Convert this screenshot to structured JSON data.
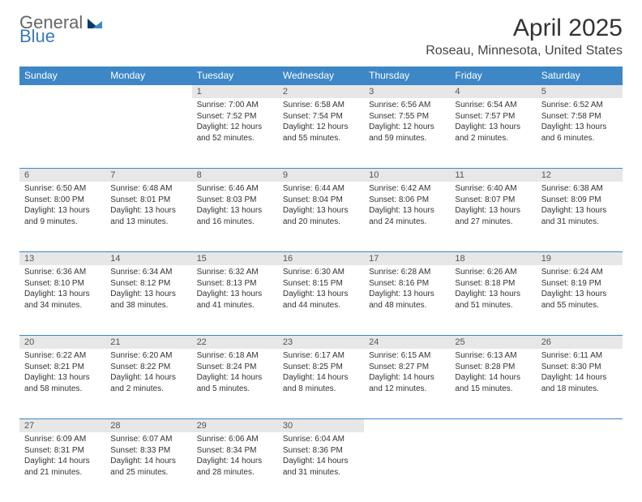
{
  "logo": {
    "text1": "General",
    "text2": "Blue"
  },
  "title": "April 2025",
  "location": "Roseau, Minnesota, United States",
  "header_bg": "#3d87c7",
  "daynum_bg": "#e7e7e7",
  "weekdays": [
    "Sunday",
    "Monday",
    "Tuesday",
    "Wednesday",
    "Thursday",
    "Friday",
    "Saturday"
  ],
  "weeks": [
    [
      null,
      null,
      {
        "n": "1",
        "sr": "Sunrise: 7:00 AM",
        "ss": "Sunset: 7:52 PM",
        "dl": "Daylight: 12 hours and 52 minutes."
      },
      {
        "n": "2",
        "sr": "Sunrise: 6:58 AM",
        "ss": "Sunset: 7:54 PM",
        "dl": "Daylight: 12 hours and 55 minutes."
      },
      {
        "n": "3",
        "sr": "Sunrise: 6:56 AM",
        "ss": "Sunset: 7:55 PM",
        "dl": "Daylight: 12 hours and 59 minutes."
      },
      {
        "n": "4",
        "sr": "Sunrise: 6:54 AM",
        "ss": "Sunset: 7:57 PM",
        "dl": "Daylight: 13 hours and 2 minutes."
      },
      {
        "n": "5",
        "sr": "Sunrise: 6:52 AM",
        "ss": "Sunset: 7:58 PM",
        "dl": "Daylight: 13 hours and 6 minutes."
      }
    ],
    [
      {
        "n": "6",
        "sr": "Sunrise: 6:50 AM",
        "ss": "Sunset: 8:00 PM",
        "dl": "Daylight: 13 hours and 9 minutes."
      },
      {
        "n": "7",
        "sr": "Sunrise: 6:48 AM",
        "ss": "Sunset: 8:01 PM",
        "dl": "Daylight: 13 hours and 13 minutes."
      },
      {
        "n": "8",
        "sr": "Sunrise: 6:46 AM",
        "ss": "Sunset: 8:03 PM",
        "dl": "Daylight: 13 hours and 16 minutes."
      },
      {
        "n": "9",
        "sr": "Sunrise: 6:44 AM",
        "ss": "Sunset: 8:04 PM",
        "dl": "Daylight: 13 hours and 20 minutes."
      },
      {
        "n": "10",
        "sr": "Sunrise: 6:42 AM",
        "ss": "Sunset: 8:06 PM",
        "dl": "Daylight: 13 hours and 24 minutes."
      },
      {
        "n": "11",
        "sr": "Sunrise: 6:40 AM",
        "ss": "Sunset: 8:07 PM",
        "dl": "Daylight: 13 hours and 27 minutes."
      },
      {
        "n": "12",
        "sr": "Sunrise: 6:38 AM",
        "ss": "Sunset: 8:09 PM",
        "dl": "Daylight: 13 hours and 31 minutes."
      }
    ],
    [
      {
        "n": "13",
        "sr": "Sunrise: 6:36 AM",
        "ss": "Sunset: 8:10 PM",
        "dl": "Daylight: 13 hours and 34 minutes."
      },
      {
        "n": "14",
        "sr": "Sunrise: 6:34 AM",
        "ss": "Sunset: 8:12 PM",
        "dl": "Daylight: 13 hours and 38 minutes."
      },
      {
        "n": "15",
        "sr": "Sunrise: 6:32 AM",
        "ss": "Sunset: 8:13 PM",
        "dl": "Daylight: 13 hours and 41 minutes."
      },
      {
        "n": "16",
        "sr": "Sunrise: 6:30 AM",
        "ss": "Sunset: 8:15 PM",
        "dl": "Daylight: 13 hours and 44 minutes."
      },
      {
        "n": "17",
        "sr": "Sunrise: 6:28 AM",
        "ss": "Sunset: 8:16 PM",
        "dl": "Daylight: 13 hours and 48 minutes."
      },
      {
        "n": "18",
        "sr": "Sunrise: 6:26 AM",
        "ss": "Sunset: 8:18 PM",
        "dl": "Daylight: 13 hours and 51 minutes."
      },
      {
        "n": "19",
        "sr": "Sunrise: 6:24 AM",
        "ss": "Sunset: 8:19 PM",
        "dl": "Daylight: 13 hours and 55 minutes."
      }
    ],
    [
      {
        "n": "20",
        "sr": "Sunrise: 6:22 AM",
        "ss": "Sunset: 8:21 PM",
        "dl": "Daylight: 13 hours and 58 minutes."
      },
      {
        "n": "21",
        "sr": "Sunrise: 6:20 AM",
        "ss": "Sunset: 8:22 PM",
        "dl": "Daylight: 14 hours and 2 minutes."
      },
      {
        "n": "22",
        "sr": "Sunrise: 6:18 AM",
        "ss": "Sunset: 8:24 PM",
        "dl": "Daylight: 14 hours and 5 minutes."
      },
      {
        "n": "23",
        "sr": "Sunrise: 6:17 AM",
        "ss": "Sunset: 8:25 PM",
        "dl": "Daylight: 14 hours and 8 minutes."
      },
      {
        "n": "24",
        "sr": "Sunrise: 6:15 AM",
        "ss": "Sunset: 8:27 PM",
        "dl": "Daylight: 14 hours and 12 minutes."
      },
      {
        "n": "25",
        "sr": "Sunrise: 6:13 AM",
        "ss": "Sunset: 8:28 PM",
        "dl": "Daylight: 14 hours and 15 minutes."
      },
      {
        "n": "26",
        "sr": "Sunrise: 6:11 AM",
        "ss": "Sunset: 8:30 PM",
        "dl": "Daylight: 14 hours and 18 minutes."
      }
    ],
    [
      {
        "n": "27",
        "sr": "Sunrise: 6:09 AM",
        "ss": "Sunset: 8:31 PM",
        "dl": "Daylight: 14 hours and 21 minutes."
      },
      {
        "n": "28",
        "sr": "Sunrise: 6:07 AM",
        "ss": "Sunset: 8:33 PM",
        "dl": "Daylight: 14 hours and 25 minutes."
      },
      {
        "n": "29",
        "sr": "Sunrise: 6:06 AM",
        "ss": "Sunset: 8:34 PM",
        "dl": "Daylight: 14 hours and 28 minutes."
      },
      {
        "n": "30",
        "sr": "Sunrise: 6:04 AM",
        "ss": "Sunset: 8:36 PM",
        "dl": "Daylight: 14 hours and 31 minutes."
      },
      null,
      null,
      null
    ]
  ]
}
